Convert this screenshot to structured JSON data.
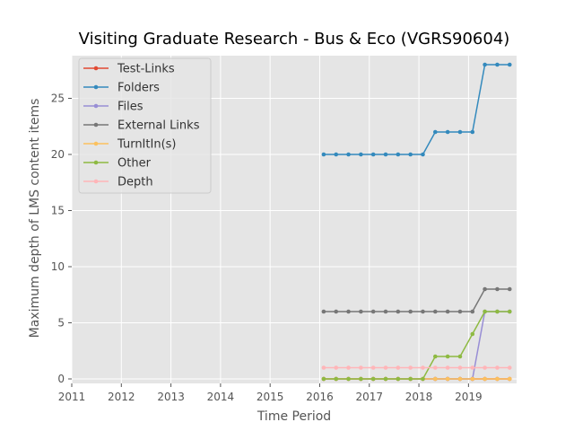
{
  "chart_data": {
    "type": "line",
    "title": "Visiting Graduate Research - Bus & Eco (VGRS90604)",
    "xlabel": "Time Period",
    "ylabel": "Maximum depth of LMS content items",
    "xlim": [
      2011.0,
      2019.97
    ],
    "ylim": [
      -0.4,
      28.8
    ],
    "x_ticks": [
      2011,
      2012,
      2013,
      2014,
      2015,
      2016,
      2017,
      2018,
      2019
    ],
    "y_ticks": [
      0,
      5,
      10,
      15,
      20,
      25
    ],
    "grid": true,
    "legend_position": "top-left",
    "x": [
      2016.08,
      2016.33,
      2016.58,
      2016.83,
      2017.08,
      2017.33,
      2017.58,
      2017.83,
      2018.08,
      2018.33,
      2018.58,
      2018.83,
      2019.08,
      2019.33,
      2019.58,
      2019.83
    ],
    "series": [
      {
        "name": "Test-Links",
        "color": "#E24A33",
        "values": [
          0,
          0,
          0,
          0,
          0,
          0,
          0,
          0,
          0,
          0,
          0,
          0,
          0,
          0,
          0,
          0
        ]
      },
      {
        "name": "Folders",
        "color": "#348ABD",
        "values": [
          20,
          20,
          20,
          20,
          20,
          20,
          20,
          20,
          20,
          22,
          22,
          22,
          22,
          28,
          28,
          28
        ]
      },
      {
        "name": "Files",
        "color": "#988ED5",
        "values": [
          0,
          0,
          0,
          0,
          0,
          0,
          0,
          0,
          0,
          0,
          0,
          0,
          0,
          6,
          6,
          6
        ]
      },
      {
        "name": "External Links",
        "color": "#777777",
        "values": [
          6,
          6,
          6,
          6,
          6,
          6,
          6,
          6,
          6,
          6,
          6,
          6,
          6,
          8,
          8,
          8
        ]
      },
      {
        "name": "TurnItIn(s)",
        "color": "#FBC15E",
        "values": [
          0,
          0,
          0,
          0,
          0,
          0,
          0,
          0,
          0,
          0,
          0,
          0,
          0,
          0,
          0,
          0
        ]
      },
      {
        "name": "Other",
        "color": "#8EBA42",
        "values": [
          0,
          0,
          0,
          0,
          0,
          0,
          0,
          0,
          0,
          2,
          2,
          2,
          4,
          6,
          6,
          6
        ]
      },
      {
        "name": "Depth",
        "color": "#FFB5B8",
        "values": [
          1,
          1,
          1,
          1,
          1,
          1,
          1,
          1,
          1,
          1,
          1,
          1,
          1,
          1,
          1,
          1
        ]
      }
    ]
  }
}
